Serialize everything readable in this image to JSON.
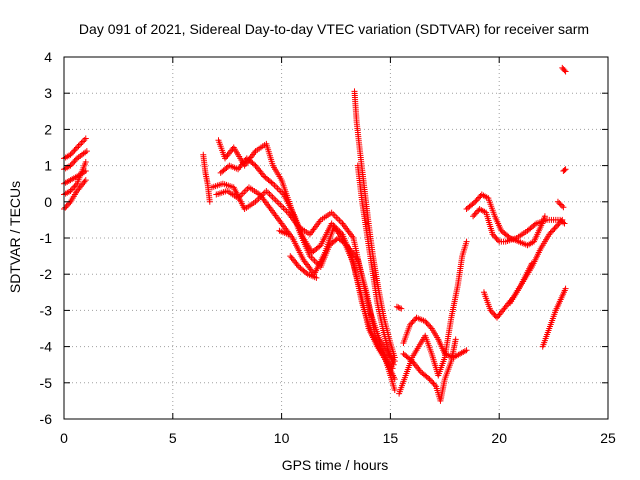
{
  "chart_data": {
    "type": "scatter",
    "title": "Day 091 of 2021, Sidereal Day-to-day VTEC variation (SDTVAR) for receiver sarm",
    "xlabel": "GPS time / hours",
    "ylabel": "SDTVAR / TECUs",
    "xlim": [
      0,
      25
    ],
    "ylim": [
      -6,
      4
    ],
    "xticks": [
      "0",
      "5",
      "10",
      "15",
      "20",
      "25"
    ],
    "yticks": [
      "4",
      "3",
      "2",
      "1",
      "0",
      "-1",
      "-2",
      "-3",
      "-4",
      "-5",
      "-6"
    ],
    "grid": true,
    "marker": "+",
    "series": [
      {
        "name": "SDTVAR",
        "color": "#ff0000",
        "tracks": [
          [
            [
              0.0,
              1.2
            ],
            [
              0.3,
              1.3
            ],
            [
              0.6,
              1.5
            ],
            [
              1.0,
              1.75
            ]
          ],
          [
            [
              0.0,
              0.9
            ],
            [
              0.3,
              1.0
            ],
            [
              0.6,
              1.2
            ],
            [
              1.05,
              1.4
            ]
          ],
          [
            [
              0.0,
              0.5
            ],
            [
              0.3,
              0.6
            ],
            [
              0.6,
              0.7
            ],
            [
              1.0,
              0.85
            ]
          ],
          [
            [
              0.0,
              -0.2
            ],
            [
              0.3,
              0.0
            ],
            [
              0.6,
              0.3
            ],
            [
              1.0,
              0.6
            ]
          ],
          [
            [
              0.0,
              0.2
            ],
            [
              0.3,
              0.3
            ],
            [
              0.6,
              0.5
            ],
            [
              1.0,
              1.1
            ]
          ],
          [
            [
              6.4,
              1.3
            ],
            [
              6.5,
              0.8
            ],
            [
              6.6,
              0.5
            ],
            [
              6.7,
              0.0
            ]
          ],
          [
            [
              7.1,
              1.7
            ],
            [
              7.4,
              1.2
            ],
            [
              7.8,
              1.5
            ],
            [
              8.3,
              1.0
            ],
            [
              8.8,
              1.4
            ],
            [
              9.3,
              1.6
            ],
            [
              9.6,
              1.0
            ],
            [
              10.0,
              0.6
            ],
            [
              10.4,
              -0.1
            ],
            [
              10.8,
              -0.8
            ],
            [
              11.3,
              -1.5
            ],
            [
              11.8,
              -1.8
            ],
            [
              12.2,
              -1.2
            ],
            [
              12.6,
              -1.0
            ],
            [
              13.0,
              -1.2
            ],
            [
              13.5,
              -1.6
            ],
            [
              13.9,
              -2.5
            ],
            [
              14.3,
              -3.7
            ],
            [
              14.7,
              -4.2
            ],
            [
              15.0,
              -4.8
            ],
            [
              15.2,
              -5.2
            ]
          ],
          [
            [
              7.2,
              0.8
            ],
            [
              7.6,
              1.0
            ],
            [
              8.0,
              0.9
            ],
            [
              8.4,
              1.2
            ],
            [
              8.8,
              1.0
            ],
            [
              9.2,
              0.7
            ],
            [
              9.6,
              0.5
            ],
            [
              10.1,
              0.2
            ],
            [
              10.6,
              -0.4
            ],
            [
              11.0,
              -1.0
            ],
            [
              11.4,
              -1.4
            ],
            [
              11.8,
              -1.2
            ],
            [
              12.3,
              -0.6
            ],
            [
              12.8,
              -0.9
            ],
            [
              13.2,
              -1.5
            ],
            [
              13.6,
              -2.4
            ],
            [
              14.0,
              -3.5
            ],
            [
              14.4,
              -4.0
            ],
            [
              14.8,
              -4.3
            ],
            [
              15.1,
              -4.6
            ]
          ],
          [
            [
              7.0,
              0.2
            ],
            [
              7.5,
              0.3
            ],
            [
              8.0,
              0.1
            ],
            [
              8.5,
              0.4
            ],
            [
              9.0,
              0.2
            ],
            [
              9.5,
              -0.2
            ],
            [
              10.0,
              -0.6
            ],
            [
              10.5,
              -1.0
            ],
            [
              11.0,
              -1.6
            ],
            [
              11.5,
              -2.0
            ],
            [
              12.0,
              -1.4
            ],
            [
              12.4,
              -0.7
            ],
            [
              12.8,
              -1.0
            ],
            [
              13.3,
              -1.7
            ],
            [
              13.7,
              -2.8
            ],
            [
              14.1,
              -3.6
            ],
            [
              14.5,
              -4.1
            ],
            [
              14.9,
              -4.5
            ],
            [
              15.2,
              -4.9
            ]
          ],
          [
            [
              6.8,
              0.4
            ],
            [
              7.3,
              0.5
            ],
            [
              7.8,
              0.4
            ],
            [
              8.3,
              -0.2
            ],
            [
              8.8,
              0.0
            ],
            [
              9.3,
              0.3
            ],
            [
              9.8,
              0.0
            ],
            [
              10.3,
              -0.3
            ],
            [
              10.8,
              -0.7
            ],
            [
              11.3,
              -0.9
            ],
            [
              11.8,
              -0.5
            ],
            [
              12.3,
              -0.3
            ],
            [
              12.8,
              -0.6
            ],
            [
              13.3,
              -1.0
            ],
            [
              13.7,
              -2.1
            ],
            [
              14.1,
              -3.1
            ],
            [
              14.5,
              -3.8
            ],
            [
              14.9,
              -4.2
            ],
            [
              15.2,
              -4.4
            ]
          ],
          [
            [
              9.9,
              -0.8
            ],
            [
              10.3,
              -0.9
            ]
          ],
          [
            [
              10.4,
              -1.5
            ],
            [
              10.8,
              -1.8
            ],
            [
              11.2,
              -2.0
            ],
            [
              11.6,
              -2.1
            ]
          ],
          [
            [
              13.35,
              3.05
            ],
            [
              13.45,
              2.2
            ],
            [
              13.6,
              1.4
            ],
            [
              13.8,
              0.4
            ],
            [
              14.0,
              -0.6
            ],
            [
              14.2,
              -1.5
            ],
            [
              14.45,
              -2.4
            ],
            [
              14.7,
              -3.2
            ],
            [
              15.0,
              -3.9
            ],
            [
              15.2,
              -4.3
            ]
          ],
          [
            [
              13.5,
              1.0
            ],
            [
              13.7,
              0.0
            ],
            [
              13.9,
              -0.8
            ],
            [
              14.15,
              -1.8
            ],
            [
              14.4,
              -2.8
            ],
            [
              14.65,
              -3.5
            ],
            [
              14.9,
              -4.1
            ],
            [
              15.15,
              -4.5
            ]
          ],
          [
            [
              15.3,
              -2.9
            ],
            [
              15.5,
              -2.95
            ]
          ],
          [
            [
              15.4,
              -5.3
            ],
            [
              15.7,
              -4.8
            ],
            [
              16.0,
              -4.3
            ],
            [
              16.3,
              -4.0
            ],
            [
              16.6,
              -3.7
            ],
            [
              16.9,
              -4.2
            ],
            [
              17.2,
              -4.8
            ],
            [
              17.5,
              -4.3
            ],
            [
              17.8,
              -3.2
            ],
            [
              18.1,
              -2.3
            ],
            [
              18.3,
              -1.5
            ],
            [
              18.5,
              -1.1
            ]
          ],
          [
            [
              15.6,
              -3.9
            ],
            [
              15.9,
              -3.4
            ],
            [
              16.2,
              -3.2
            ],
            [
              16.6,
              -3.3
            ],
            [
              16.9,
              -3.5
            ],
            [
              17.2,
              -3.8
            ],
            [
              17.5,
              -4.2
            ],
            [
              17.9,
              -4.3
            ],
            [
              18.2,
              -4.2
            ],
            [
              18.5,
              -4.1
            ]
          ],
          [
            [
              15.6,
              -4.2
            ],
            [
              16.0,
              -4.4
            ],
            [
              16.4,
              -4.7
            ],
            [
              16.8,
              -4.9
            ],
            [
              17.1,
              -5.1
            ],
            [
              17.3,
              -5.5
            ],
            [
              17.5,
              -4.9
            ],
            [
              17.8,
              -4.4
            ],
            [
              18.0,
              -3.8
            ]
          ],
          [
            [
              18.5,
              -0.2
            ],
            [
              18.9,
              0.0
            ],
            [
              19.2,
              0.2
            ],
            [
              19.5,
              0.1
            ],
            [
              19.8,
              -0.4
            ],
            [
              20.1,
              -0.8
            ],
            [
              20.5,
              -1.0
            ],
            [
              20.9,
              -1.1
            ],
            [
              21.3,
              -1.2
            ],
            [
              21.6,
              -1.1
            ],
            [
              21.9,
              -0.7
            ],
            [
              22.1,
              -0.4
            ]
          ],
          [
            [
              18.8,
              -0.4
            ],
            [
              19.1,
              -0.2
            ],
            [
              19.4,
              -0.3
            ],
            [
              19.7,
              -0.9
            ],
            [
              20.0,
              -1.1
            ],
            [
              20.3,
              -1.1
            ],
            [
              20.8,
              -1.0
            ],
            [
              21.3,
              -0.8
            ],
            [
              21.7,
              -0.6
            ],
            [
              22.2,
              -0.5
            ],
            [
              22.5,
              -0.5
            ],
            [
              22.8,
              -0.5
            ],
            [
              23.0,
              -0.6
            ]
          ],
          [
            [
              19.3,
              -2.5
            ],
            [
              19.6,
              -3.0
            ],
            [
              19.9,
              -3.2
            ],
            [
              20.3,
              -2.9
            ],
            [
              20.7,
              -2.6
            ],
            [
              21.1,
              -2.2
            ],
            [
              21.5,
              -1.8
            ],
            [
              21.9,
              -1.3
            ],
            [
              22.3,
              -0.9
            ],
            [
              22.6,
              -0.7
            ],
            [
              22.9,
              -0.5
            ]
          ],
          [
            [
              22.0,
              -4.0
            ],
            [
              22.3,
              -3.5
            ],
            [
              22.6,
              -3.0
            ],
            [
              22.9,
              -2.6
            ],
            [
              23.05,
              -2.4
            ]
          ],
          [
            [
              20.5,
              -2.8
            ],
            [
              21.0,
              -2.3
            ],
            [
              21.5,
              -1.7
            ]
          ],
          [
            [
              22.7,
              0.0
            ],
            [
              22.95,
              -0.15
            ]
          ],
          [
            [
              22.95,
              0.85
            ],
            [
              23.05,
              0.9
            ]
          ],
          [
            [
              22.9,
              3.7
            ],
            [
              23.05,
              3.6
            ]
          ]
        ]
      }
    ]
  }
}
